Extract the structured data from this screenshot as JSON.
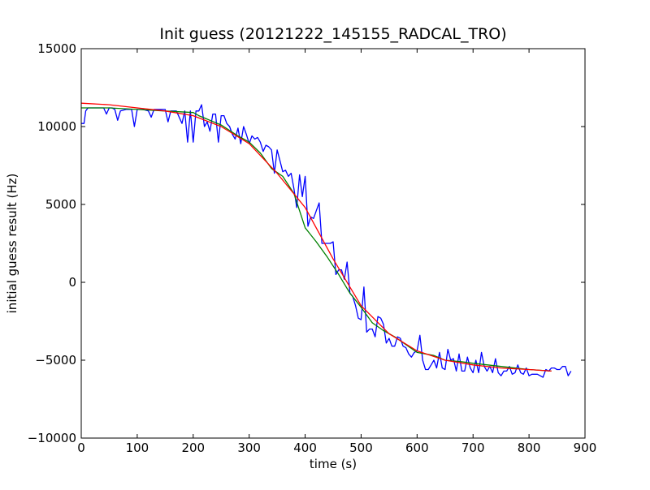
{
  "chart_data": {
    "type": "line",
    "title": "Init guess (20121222_145155_RADCAL_TRO)",
    "xlabel": "time (s)",
    "ylabel": "initial guess result (Hz)",
    "xlim": [
      0,
      900
    ],
    "ylim": [
      -10000,
      15000
    ],
    "xticks": [
      0,
      100,
      200,
      300,
      400,
      500,
      600,
      700,
      800,
      900
    ],
    "yticks": [
      -10000,
      -5000,
      0,
      5000,
      10000,
      15000
    ],
    "xtick_labels": [
      "0",
      "100",
      "200",
      "300",
      "400",
      "500",
      "600",
      "700",
      "800",
      "900"
    ],
    "ytick_labels": [
      "−10000",
      "−5000",
      "0",
      "5000",
      "10000",
      "15000"
    ],
    "grid": false,
    "series": [
      {
        "color": "#0000ff",
        "x": [
          0,
          5,
          8,
          12,
          20,
          30,
          40,
          45,
          50,
          55,
          60,
          65,
          70,
          80,
          90,
          95,
          100,
          110,
          120,
          125,
          130,
          140,
          150,
          155,
          160,
          170,
          180,
          185,
          190,
          195,
          200,
          205,
          210,
          215,
          220,
          225,
          230,
          235,
          240,
          245,
          250,
          255,
          260,
          265,
          270,
          275,
          280,
          285,
          290,
          295,
          300,
          305,
          310,
          315,
          320,
          325,
          330,
          335,
          340,
          345,
          350,
          355,
          360,
          365,
          370,
          375,
          380,
          385,
          390,
          395,
          400,
          405,
          410,
          415,
          420,
          425,
          430,
          435,
          440,
          445,
          450,
          455,
          460,
          465,
          470,
          475,
          480,
          485,
          490,
          495,
          500,
          505,
          510,
          515,
          520,
          525,
          530,
          535,
          540,
          545,
          550,
          555,
          560,
          565,
          570,
          575,
          580,
          585,
          590,
          595,
          600,
          605,
          610,
          615,
          620,
          625,
          630,
          635,
          640,
          645,
          650,
          655,
          660,
          665,
          670,
          675,
          680,
          685,
          690,
          695,
          700,
          705,
          710,
          715,
          720,
          725,
          730,
          735,
          740,
          745,
          750,
          755,
          760,
          765,
          770,
          775,
          780,
          785,
          790,
          795,
          800,
          805,
          810,
          815,
          820,
          825,
          830,
          835,
          840,
          845,
          850,
          855,
          860,
          865,
          870,
          875
        ],
        "y": [
          10200,
          10200,
          11000,
          11200,
          11200,
          11200,
          11200,
          10800,
          11200,
          11200,
          11100,
          10400,
          11000,
          11100,
          11100,
          10000,
          11100,
          11100,
          11000,
          10600,
          11100,
          11100,
          11100,
          10300,
          11000,
          11000,
          10200,
          11000,
          9000,
          11000,
          9000,
          11000,
          11000,
          11400,
          10000,
          10300,
          9700,
          10800,
          10800,
          9000,
          10700,
          10700,
          10200,
          10000,
          9500,
          9200,
          9900,
          8900,
          10000,
          9500,
          8900,
          9400,
          9200,
          9300,
          9000,
          8400,
          8800,
          8700,
          8500,
          7000,
          8500,
          7800,
          7100,
          7200,
          6800,
          7000,
          6000,
          4800,
          6900,
          5500,
          6800,
          3600,
          4200,
          4100,
          4600,
          5100,
          2500,
          2500,
          2500,
          2500,
          2600,
          500,
          800,
          800,
          200,
          1300,
          -700,
          -900,
          -1500,
          -2300,
          -2400,
          -300,
          -3200,
          -3000,
          -3000,
          -3500,
          -2200,
          -2300,
          -2700,
          -3900,
          -3600,
          -4100,
          -4100,
          -3500,
          -3600,
          -4100,
          -4200,
          -4600,
          -4800,
          -4500,
          -4400,
          -3400,
          -5000,
          -5600,
          -5600,
          -5300,
          -5000,
          -5500,
          -4500,
          -5500,
          -5600,
          -4300,
          -5000,
          -4900,
          -5700,
          -4600,
          -5700,
          -5700,
          -4800,
          -5500,
          -5800,
          -5000,
          -5800,
          -4500,
          -5400,
          -5700,
          -5400,
          -5800,
          -4900,
          -5800,
          -6000,
          -5700,
          -5700,
          -5400,
          -5900,
          -5800,
          -5300,
          -5800,
          -5900,
          -5500,
          -6000,
          -5900,
          -5900,
          -5900,
          -6000,
          -6100,
          -5600,
          -5700,
          -5500,
          -5500,
          -5600,
          -5600,
          -5400,
          -5400,
          -6000,
          -5700
        ]
      },
      {
        "color": "#008000",
        "x": [
          0,
          50,
          100,
          150,
          200,
          210,
          230,
          250,
          280,
          300,
          320,
          340,
          360,
          380,
          400,
          420,
          440,
          460,
          480,
          500,
          520,
          540,
          560,
          580,
          600,
          630,
          650,
          680,
          700,
          750,
          800,
          840
        ],
        "y": [
          11200,
          11200,
          11100,
          11000,
          10900,
          10700,
          10400,
          10100,
          9400,
          9000,
          8300,
          7300,
          6800,
          5700,
          3500,
          2600,
          1600,
          500,
          -700,
          -1600,
          -2600,
          -3100,
          -3500,
          -4000,
          -4500,
          -4700,
          -5000,
          -5100,
          -5200,
          -5400,
          -5600,
          -5700
        ]
      },
      {
        "color": "#ff0000",
        "x": [
          0,
          50,
          100,
          150,
          200,
          250,
          300,
          350,
          400,
          450,
          500,
          550,
          600,
          650,
          700,
          750,
          800,
          840
        ],
        "y": [
          11500,
          11400,
          11200,
          11000,
          10700,
          10000,
          8900,
          7000,
          4800,
          1500,
          -1500,
          -3300,
          -4400,
          -5000,
          -5300,
          -5500,
          -5600,
          -5700
        ]
      }
    ]
  }
}
